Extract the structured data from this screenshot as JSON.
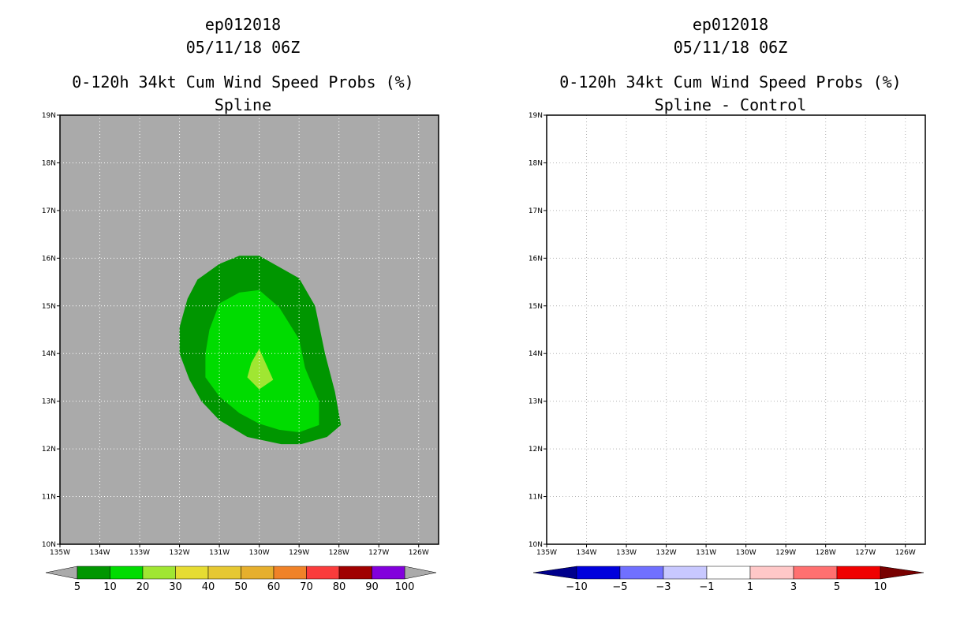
{
  "left_panel": {
    "storm_id": "ep012018",
    "datetime": "05/11/18 06Z",
    "title_line": "0-120h 34kt Cum Wind Speed Probs (%)",
    "subtitle": "Spline"
  },
  "right_panel": {
    "storm_id": "ep012018",
    "datetime": "05/11/18 06Z",
    "title_line": "0-120h 34kt Cum Wind Speed Probs (%)",
    "subtitle": "Spline - Control"
  },
  "chart_data": [
    {
      "type": "heatmap",
      "title": "0-120h 34kt Cum Wind Speed Probs (%) Spline",
      "xlim": [
        -135,
        -125.5
      ],
      "ylim": [
        10,
        19
      ],
      "x_ticks": [
        -135,
        -134,
        -133,
        -132,
        -131,
        -130,
        -129,
        -128,
        -127,
        -126
      ],
      "x_tick_labels": [
        "135W",
        "134W",
        "133W",
        "132W",
        "131W",
        "130W",
        "129W",
        "128W",
        "127W",
        "126W"
      ],
      "y_ticks": [
        10,
        11,
        12,
        13,
        14,
        15,
        16,
        17,
        18,
        19
      ],
      "y_tick_labels": [
        "10N",
        "11N",
        "12N",
        "13N",
        "14N",
        "15N",
        "16N",
        "17N",
        "18N",
        "19N"
      ],
      "grid": true,
      "background_color": "#aaaaaa",
      "contours": [
        {
          "level": 5,
          "color": "#009600",
          "polygon": [
            [
              -130.5,
              16.05
            ],
            [
              -130.0,
              16.05
            ],
            [
              -129.0,
              15.58
            ],
            [
              -128.6,
              15.0
            ],
            [
              -128.35,
              14.0
            ],
            [
              -128.1,
              13.2
            ],
            [
              -127.95,
              12.5
            ],
            [
              -128.3,
              12.25
            ],
            [
              -128.95,
              12.1
            ],
            [
              -129.45,
              12.1
            ],
            [
              -130.3,
              12.25
            ],
            [
              -131.0,
              12.6
            ],
            [
              -131.45,
              13.0
            ],
            [
              -131.75,
              13.45
            ],
            [
              -132.0,
              14.0
            ],
            [
              -132.0,
              14.55
            ],
            [
              -131.8,
              15.15
            ],
            [
              -131.55,
              15.55
            ],
            [
              -131.0,
              15.88
            ]
          ]
        },
        {
          "level": 10,
          "color": "#00dc00",
          "polygon": [
            [
              -130.5,
              15.28
            ],
            [
              -130.0,
              15.33
            ],
            [
              -129.5,
              14.97
            ],
            [
              -129.0,
              14.3
            ],
            [
              -128.85,
              13.7
            ],
            [
              -128.5,
              13.0
            ],
            [
              -128.5,
              12.5
            ],
            [
              -129.0,
              12.35
            ],
            [
              -129.5,
              12.4
            ],
            [
              -130.0,
              12.53
            ],
            [
              -130.5,
              12.75
            ],
            [
              -131.0,
              13.1
            ],
            [
              -131.35,
              13.5
            ],
            [
              -131.35,
              14.0
            ],
            [
              -131.25,
              14.5
            ],
            [
              -131.0,
              15.05
            ]
          ]
        },
        {
          "level": 20,
          "color": "#a0e632",
          "polygon": [
            [
              -130.0,
              14.1
            ],
            [
              -129.65,
              13.45
            ],
            [
              -130.0,
              13.25
            ],
            [
              -130.3,
              13.5
            ],
            [
              -130.2,
              13.8
            ]
          ]
        }
      ],
      "colorbar": {
        "levels": [
          5,
          10,
          20,
          30,
          40,
          50,
          60,
          70,
          80,
          90,
          100
        ],
        "colors": [
          "#009600",
          "#00dc00",
          "#a0e632",
          "#e6dc32",
          "#e6c832",
          "#e6af2d",
          "#f08228",
          "#fa3c3c",
          "#a00000",
          "#8200dc"
        ],
        "extend_color": "#aaaaaa"
      }
    },
    {
      "type": "heatmap",
      "title": "0-120h 34kt Cum Wind Speed Probs (%) Spline - Control",
      "xlim": [
        -135,
        -125.5
      ],
      "ylim": [
        10,
        19
      ],
      "x_ticks": [
        -135,
        -134,
        -133,
        -132,
        -131,
        -130,
        -129,
        -128,
        -127,
        -126
      ],
      "x_tick_labels": [
        "135W",
        "134W",
        "133W",
        "132W",
        "131W",
        "130W",
        "129W",
        "128W",
        "127W",
        "126W"
      ],
      "y_ticks": [
        10,
        11,
        12,
        13,
        14,
        15,
        16,
        17,
        18,
        19
      ],
      "y_tick_labels": [
        "10N",
        "11N",
        "12N",
        "13N",
        "14N",
        "15N",
        "16N",
        "17N",
        "18N",
        "19N"
      ],
      "grid": true,
      "background_color": "#ffffff",
      "contours": [],
      "colorbar": {
        "levels": [
          -10,
          -5,
          -3,
          -1,
          1,
          3,
          5,
          10
        ],
        "colors": [
          "#0000dc",
          "#7070ff",
          "#c8c8ff",
          "#ffffff",
          "#ffc8c8",
          "#ff7070",
          "#f00000"
        ],
        "extend_low_color": "#00008c",
        "extend_high_color": "#780000"
      }
    }
  ]
}
